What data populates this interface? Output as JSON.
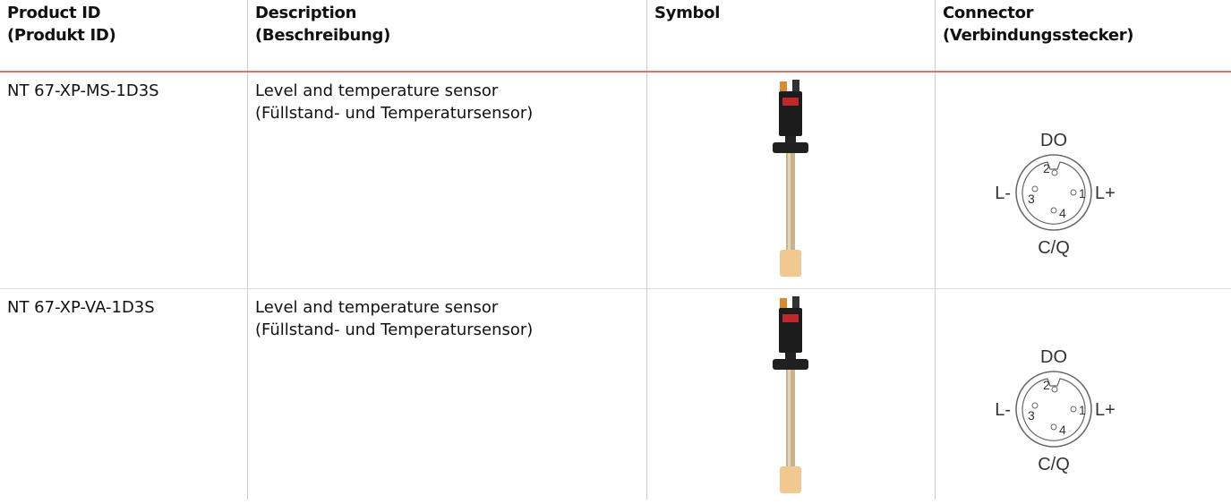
{
  "header": [
    "Product ID",
    "(Produkt ID)",
    "Description",
    "(Beschreibung)",
    "Symbol",
    "Connector",
    "(Verbindungsstecker)"
  ],
  "rows": [
    {
      "product_id": "NT 67-XP-MS-1D3S",
      "description": [
        "Level and temperature sensor",
        "(Füllstand- und Temperatursensor)"
      ],
      "connector": {
        "top": "DO",
        "left": "L-",
        "right": "L+",
        "bottom": "C/Q",
        "pins": [
          "1",
          "2",
          "3",
          "4"
        ]
      }
    },
    {
      "product_id": "NT 67-XP-VA-1D3S",
      "description": [
        "Level and temperature sensor",
        "(Füllstand- und Temperatursensor)"
      ],
      "connector": {
        "top": "DO",
        "left": "L-",
        "right": "L+",
        "bottom": "C/Q",
        "pins": [
          "1",
          "2",
          "3",
          "4"
        ]
      }
    }
  ]
}
